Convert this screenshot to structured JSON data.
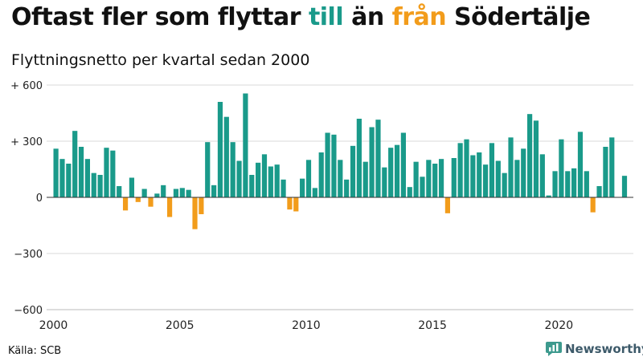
{
  "title": {
    "part1": "Oftast fler som flyttar ",
    "till": "till",
    "part2": " än ",
    "fran": "från",
    "part3": " Södertälje"
  },
  "subtitle": "Flyttningsnetto per kvartal sedan 2000",
  "source": "Källa: SCB",
  "brand": {
    "name": "Newsworthy",
    "icon": "newsworthy-logo-icon"
  },
  "colors": {
    "positive": "#1a9a8a",
    "negative": "#f29c1b",
    "grid": "#d9d9d9",
    "zero": "#333333"
  },
  "chart_data": {
    "type": "bar",
    "x_start_year": 2000,
    "periods_per_year": 4,
    "ylim": [
      -600,
      600
    ],
    "y_ticks": [
      600,
      300,
      0,
      -300,
      -600
    ],
    "y_tick_labels": [
      "+ 600",
      "+ 300",
      "0",
      "−300",
      "−600"
    ],
    "x_tick_labels": [
      "2000",
      "2005",
      "2010",
      "2015",
      "2020"
    ],
    "values": [
      260,
      205,
      180,
      355,
      270,
      205,
      130,
      120,
      265,
      250,
      60,
      -70,
      105,
      -25,
      45,
      -50,
      20,
      65,
      -105,
      45,
      50,
      40,
      -170,
      -90,
      295,
      65,
      510,
      430,
      295,
      195,
      555,
      120,
      185,
      230,
      165,
      175,
      95,
      -65,
      -75,
      100,
      200,
      50,
      240,
      345,
      335,
      200,
      95,
      275,
      420,
      190,
      375,
      415,
      160,
      265,
      280,
      345,
      55,
      190,
      110,
      200,
      180,
      205,
      -85,
      210,
      290,
      310,
      225,
      240,
      175,
      290,
      195,
      130,
      320,
      200,
      260,
      445,
      410,
      230,
      10,
      140,
      310,
      140,
      155,
      350,
      140,
      -80,
      60,
      270,
      320,
      0,
      115
    ]
  }
}
